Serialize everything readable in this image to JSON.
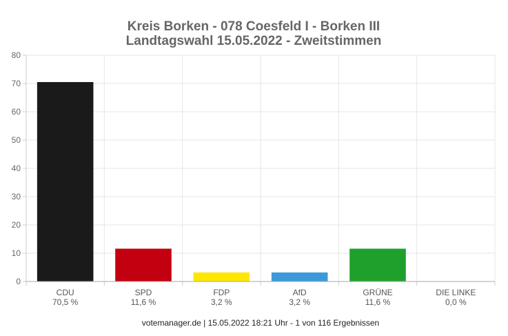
{
  "chart_data": {
    "type": "bar",
    "title": [
      "Kreis Borken - 078 Coesfeld I - Borken III",
      "Landtagswahl 15.05.2022  - Zweitstimmen"
    ],
    "categories": [
      "CDU",
      "SPD",
      "FDP",
      "AfD",
      "GRÜNE",
      "DIE LINKE"
    ],
    "values": [
      70.5,
      11.6,
      3.2,
      3.2,
      11.6,
      0.0
    ],
    "value_labels": [
      "70,5 %",
      "11,6 %",
      "3,2 %",
      "3,2 %",
      "11,6 %",
      "0,0 %"
    ],
    "colors": [
      "#1a1a1a",
      "#c2000f",
      "#ffe600",
      "#3a9ad9",
      "#1fa02c",
      "#b5005e"
    ],
    "ylim": [
      0,
      80
    ],
    "yticks": [
      0,
      10,
      20,
      30,
      40,
      50,
      60,
      70,
      80
    ],
    "grid": true,
    "footer": "votemanager.de | 15.05.2022 18:21 Uhr - 1 von 116 Ergebnissen"
  }
}
